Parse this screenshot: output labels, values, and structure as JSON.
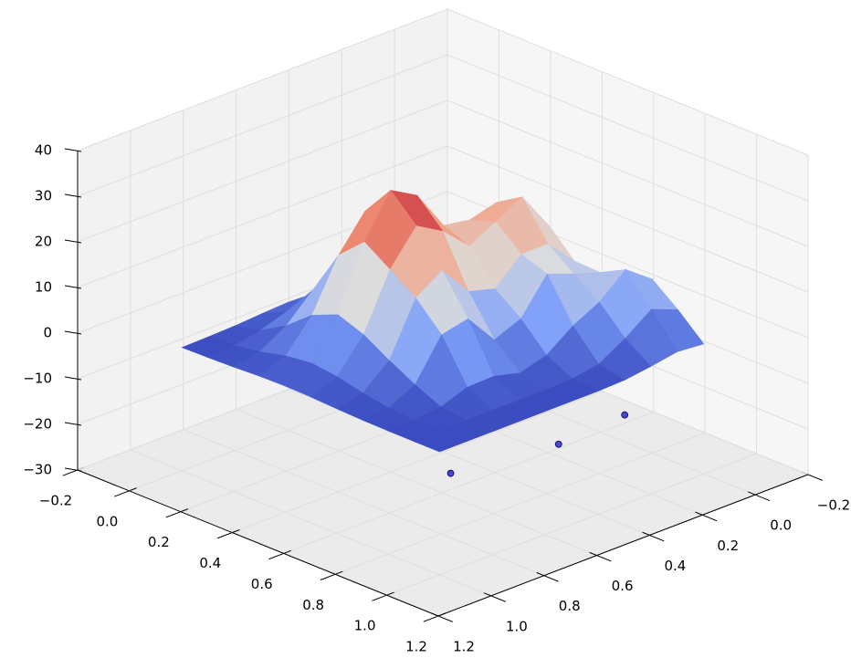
{
  "chart_data": {
    "type": "surface3d",
    "colormap": "coolwarm",
    "x": [
      0,
      0.1,
      0.2,
      0.3,
      0.4,
      0.5,
      0.6,
      0.7,
      0.8,
      0.9,
      1
    ],
    "y": [
      0,
      0.1,
      0.2,
      0.3,
      0.4,
      0.5,
      0.6,
      0.7,
      0.8,
      0.9,
      1
    ],
    "z": [
      [
        -3.0,
        -3.0,
        -3.0,
        -2.8,
        -2.5,
        -2.2,
        -2.0,
        -2.3,
        -2.7,
        -2.9,
        -3.0
      ],
      [
        -2.9,
        -2.8,
        -2.6,
        -2.0,
        -0.6,
        1.1,
        1.7,
        0.5,
        -1.4,
        -2.5,
        -2.9
      ],
      [
        -2.5,
        -1.4,
        -0.4,
        1.0,
        4.6,
        9.6,
        11.2,
        7.5,
        1.9,
        -1.6,
        -2.7
      ],
      [
        -0.6,
        4.0,
        7.7,
        8.7,
        13.1,
        21.8,
        24.8,
        17.4,
        6.5,
        -0.2,
        -2.4
      ],
      [
        2.5,
        12.7,
        20.2,
        18.6,
        19.6,
        28.4,
        31.7,
        22.6,
        8.9,
        0.5,
        -2.3
      ],
      [
        3.5,
        15.3,
        23.7,
        20.4,
        17.3,
        22.8,
        26.2,
        18.8,
        6.8,
        -0.2,
        -2.4
      ],
      [
        2.1,
        9.7,
        15.7,
        15.6,
        10.3,
        11.9,
        18.7,
        14.9,
        3.4,
        -1.5,
        -2.7
      ],
      [
        4.7,
        9.5,
        11.4,
        13.6,
        6.0,
        3.6,
        10.4,
        9.1,
        0.4,
        -2.5,
        -2.9
      ],
      [
        8.1,
        12.4,
        7.5,
        4.5,
        0.3,
        -1.4,
        0.1,
        -0.1,
        -2.2,
        -2.9,
        -3.0
      ],
      [
        3.7,
        6.0,
        1.8,
        -1.6,
        -2.6,
        -2.8,
        -2.8,
        -2.8,
        -2.9,
        -3.0,
        -3.0
      ],
      [
        -1.5,
        -1.0,
        -2.0,
        -2.8,
        -3.0,
        -3.0,
        -3.0,
        -3.0,
        -3.0,
        -3.0,
        -3.0
      ]
    ],
    "points": {
      "x": [
        0.0,
        0.12,
        0.19,
        0.56,
        0.58,
        0.52
      ],
      "y": [
        0.34,
        0.24,
        0.09,
        -0.13,
        0.14,
        0.49
      ],
      "z": [
        -30,
        -30,
        -30,
        -30,
        -30,
        -30
      ],
      "color": "#2a2ad0"
    },
    "xlim": [
      -0.2,
      1.2
    ],
    "ylim": [
      -0.2,
      1.2
    ],
    "zlim": [
      -30,
      40
    ],
    "xticks": [
      {
        "value": -0.2,
        "label": "−0.2"
      },
      {
        "value": 0,
        "label": "0.0"
      },
      0.2,
      0.4,
      0.6,
      0.8,
      {
        "value": 1,
        "label": "1.0"
      },
      1.2
    ],
    "yticks": [
      {
        "value": -0.2,
        "label": "−0.2"
      },
      {
        "value": 0,
        "label": "0.0"
      },
      0.2,
      0.4,
      0.6,
      0.8,
      {
        "value": 1,
        "label": "1.0"
      },
      1.2
    ],
    "zticks": [
      {
        "value": -30,
        "label": "−30"
      },
      {
        "value": -20,
        "label": "−20"
      },
      {
        "value": -10,
        "label": "−10"
      },
      0,
      10,
      20,
      30,
      40
    ],
    "grid": true
  }
}
